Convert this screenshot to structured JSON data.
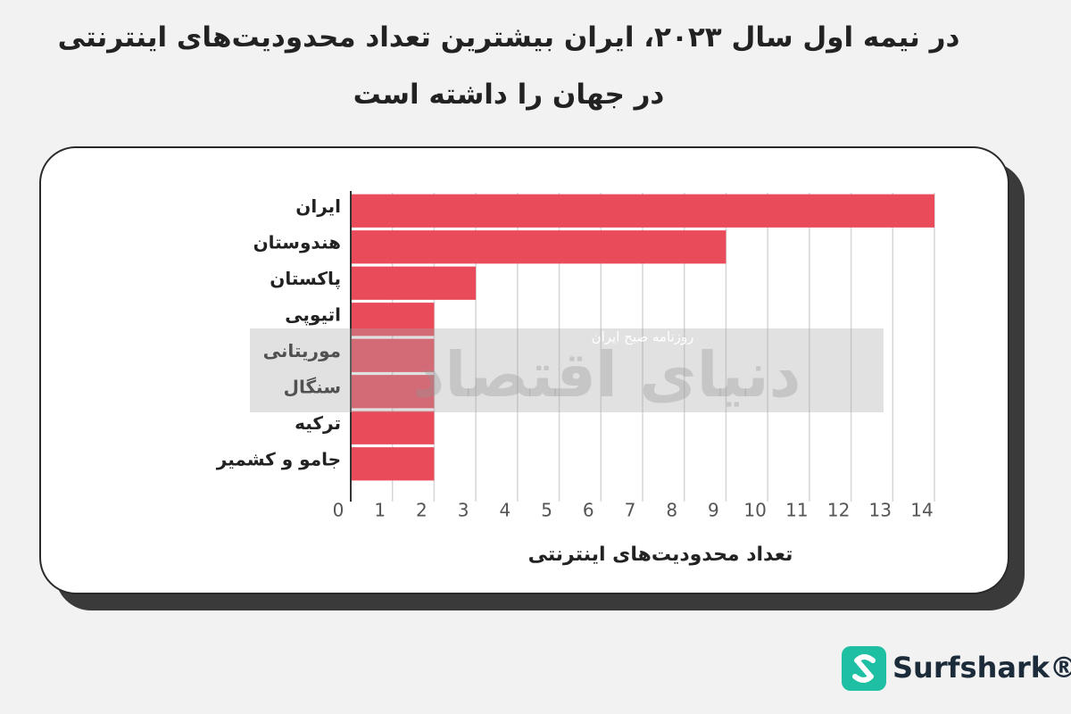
{
  "chart_data": {
    "type": "bar",
    "orientation": "horizontal",
    "title": "در نیمه اول سال ۲۰۲۳، ایران بیشترین تعداد محدودیت‌های اینترنتی در جهان را داشته است",
    "categories": [
      "ایران",
      "هندوستان",
      "پاکستان",
      "اتیوپی",
      "موریتانی",
      "سنگال",
      "ترکیه",
      "جامو و کشمیر"
    ],
    "values": [
      14,
      9,
      3,
      2,
      2,
      2,
      2,
      2
    ],
    "color": "#e94b5b",
    "xlabel": "تعداد محدودیت‌های اینترنتی",
    "xlim": [
      0,
      14
    ],
    "xticks": [
      0,
      1,
      2,
      3,
      4,
      5,
      6,
      7,
      8,
      9,
      10,
      11,
      12,
      13,
      14
    ],
    "grid": true
  },
  "watermark": {
    "newspaper": "روزنامه صبح ایران",
    "brand": "دنیای اقتصاد"
  },
  "logo": {
    "text": "Surfshark®"
  }
}
